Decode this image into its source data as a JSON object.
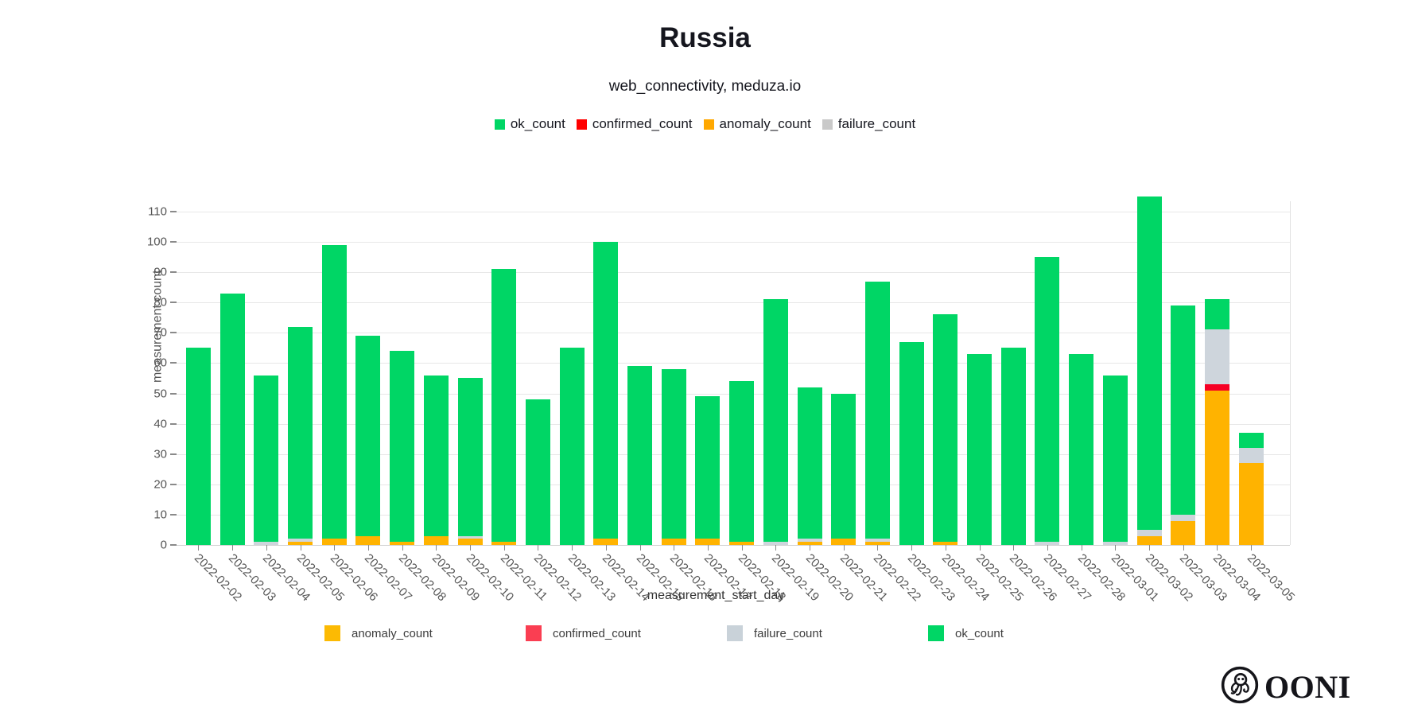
{
  "header": {
    "title": "Russia",
    "subtitle": "web_connectivity, meduza.io"
  },
  "top_legend": [
    {
      "label": "ok_count",
      "color": "#00d665"
    },
    {
      "label": "confirmed_count",
      "color": "#ff0000"
    },
    {
      "label": "anomaly_count",
      "color": "#ffa800"
    },
    {
      "label": "failure_count",
      "color": "#c9c9c9"
    }
  ],
  "bottom_legend": [
    {
      "label": "anomaly_count",
      "color": "#fcba03"
    },
    {
      "label": "confirmed_count",
      "color": "#fa3e52"
    },
    {
      "label": "failure_count",
      "color": "#c9d2d9"
    },
    {
      "label": "ok_count",
      "color": "#00d665"
    }
  ],
  "y_axis": {
    "title": "measurement count",
    "ticks": [
      0,
      10,
      20,
      30,
      40,
      50,
      60,
      70,
      80,
      90,
      100,
      110
    ]
  },
  "x_axis": {
    "title": "measurement_start_day"
  },
  "branding": {
    "logo_text": "OONI",
    "logo_icon": "octopus-in-circle"
  },
  "chart_data": {
    "type": "bar",
    "stacked": true,
    "title": "Russia",
    "subtitle": "web_connectivity, meduza.io",
    "xlabel": "measurement_start_day",
    "ylabel": "measurement count",
    "ylim": [
      0,
      115
    ],
    "grid": true,
    "categories": [
      "2022-02-02",
      "2022-02-03",
      "2022-02-04",
      "2022-02-05",
      "2022-02-06",
      "2022-02-07",
      "2022-02-08",
      "2022-02-09",
      "2022-02-10",
      "2022-02-11",
      "2022-02-12",
      "2022-02-13",
      "2022-02-14",
      "2022-02-15",
      "2022-02-16",
      "2022-02-17",
      "2022-02-18",
      "2022-02-19",
      "2022-02-20",
      "2022-02-21",
      "2022-02-22",
      "2022-02-23",
      "2022-02-24",
      "2022-02-25",
      "2022-02-26",
      "2022-02-27",
      "2022-02-28",
      "2022-03-01",
      "2022-03-02",
      "2022-03-03",
      "2022-03-04",
      "2022-03-05"
    ],
    "series": [
      {
        "name": "anomaly_count",
        "color": "#ffb300",
        "values": [
          0,
          0,
          0,
          1,
          2,
          3,
          1,
          3,
          2,
          1,
          0,
          0,
          2,
          0,
          2,
          2,
          1,
          0,
          1,
          2,
          1,
          0,
          1,
          0,
          0,
          0,
          0,
          0,
          3,
          8,
          51,
          27
        ]
      },
      {
        "name": "confirmed_count",
        "color": "#f60024",
        "values": [
          0,
          0,
          0,
          0,
          0,
          0,
          0,
          0,
          0,
          0,
          0,
          0,
          0,
          0,
          0,
          0,
          0,
          0,
          0,
          0,
          0,
          0,
          0,
          0,
          0,
          0,
          0,
          0,
          0,
          0,
          2,
          0
        ]
      },
      {
        "name": "failure_count",
        "color": "#ced5dc",
        "values": [
          0,
          0,
          1,
          1,
          0,
          0,
          0,
          0,
          1,
          0,
          0,
          0,
          0,
          0,
          0,
          0,
          0,
          1,
          1,
          0,
          1,
          0,
          0,
          0,
          0,
          1,
          0,
          1,
          2,
          2,
          18,
          5
        ]
      },
      {
        "name": "ok_count",
        "color": "#00d665",
        "values": [
          65,
          83,
          55,
          70,
          97,
          66,
          63,
          53,
          52,
          90,
          48,
          65,
          98,
          59,
          56,
          47,
          53,
          80,
          50,
          48,
          85,
          67,
          75,
          63,
          65,
          94,
          63,
          55,
          110,
          69,
          10,
          5
        ]
      }
    ],
    "totals": [
      65,
      83,
      56,
      72,
      99,
      69,
      64,
      56,
      55,
      91,
      48,
      65,
      100,
      59,
      58,
      49,
      54,
      81,
      52,
      50,
      87,
      67,
      76,
      63,
      65,
      95,
      63,
      56,
      115,
      79,
      81,
      37
    ]
  }
}
